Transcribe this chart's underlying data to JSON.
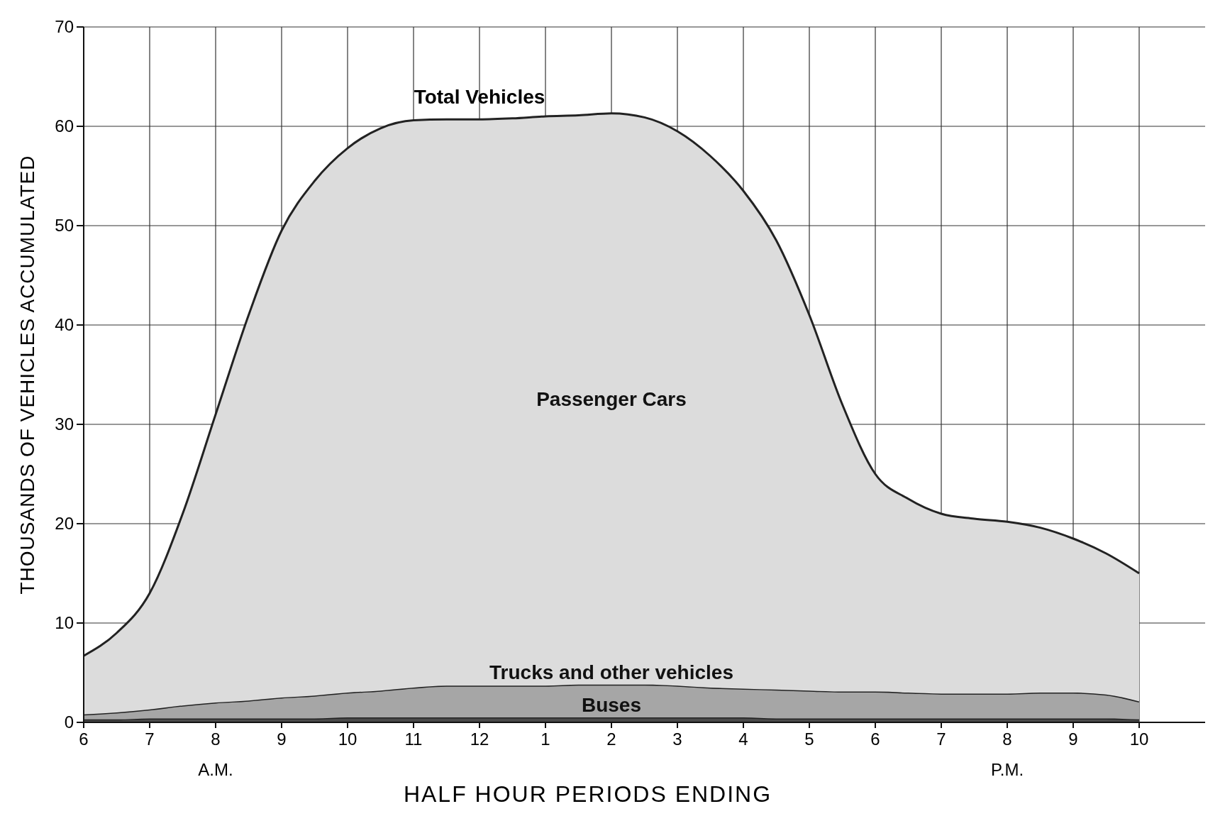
{
  "chart_data": {
    "type": "area",
    "stacked": true,
    "xlabel": "HALF HOUR PERIODS ENDING",
    "ylabel": "THOUSANDS OF VEHICLES ACCUMULATED",
    "categories": [
      "6",
      null,
      "7",
      null,
      "8",
      null,
      "9",
      null,
      "10",
      null,
      "11",
      null,
      "12",
      null,
      "1",
      null,
      "2",
      null,
      "3",
      null,
      "4",
      null,
      "5",
      null,
      "6",
      null,
      "7",
      null,
      "8",
      null,
      "9",
      null,
      "10"
    ],
    "series": [
      {
        "name": "Buses",
        "color": "#4a4a4a",
        "values": [
          0.3,
          0.3,
          0.4,
          0.4,
          0.4,
          0.4,
          0.4,
          0.4,
          0.5,
          0.5,
          0.5,
          0.5,
          0.5,
          0.5,
          0.5,
          0.5,
          0.5,
          0.5,
          0.5,
          0.5,
          0.5,
          0.4,
          0.4,
          0.4,
          0.4,
          0.4,
          0.4,
          0.4,
          0.4,
          0.4,
          0.4,
          0.4,
          0.3
        ]
      },
      {
        "name": "Trucks and other vehicles",
        "color": "#a6a6a6",
        "values": [
          0.5,
          0.7,
          0.9,
          1.3,
          1.6,
          1.8,
          2.1,
          2.3,
          2.5,
          2.7,
          3.0,
          3.2,
          3.2,
          3.2,
          3.2,
          3.3,
          3.3,
          3.3,
          3.2,
          3.0,
          2.9,
          2.9,
          2.8,
          2.7,
          2.7,
          2.6,
          2.5,
          2.5,
          2.5,
          2.6,
          2.6,
          2.4,
          1.8
        ]
      },
      {
        "name": "Passenger Cars",
        "color": "#dcdcdc",
        "values": [
          5.9,
          8.0,
          11.7,
          19.3,
          29.0,
          38.8,
          47.0,
          51.8,
          54.8,
          56.6,
          57.1,
          57.0,
          57.0,
          57.1,
          57.3,
          57.3,
          57.5,
          57.1,
          55.8,
          53.5,
          50.1,
          45.2,
          37.8,
          28.9,
          21.9,
          19.5,
          18.1,
          17.6,
          17.3,
          16.6,
          15.5,
          14.2,
          12.9
        ]
      }
    ],
    "ylim": [
      0,
      70
    ],
    "yticks": [
      0,
      10,
      20,
      30,
      40,
      50,
      60,
      70
    ],
    "grid": true,
    "annotations": [
      {
        "text": "Total Vehicles",
        "x": "12",
        "y": 60.7
      },
      "A.M.",
      "P.M."
    ]
  }
}
